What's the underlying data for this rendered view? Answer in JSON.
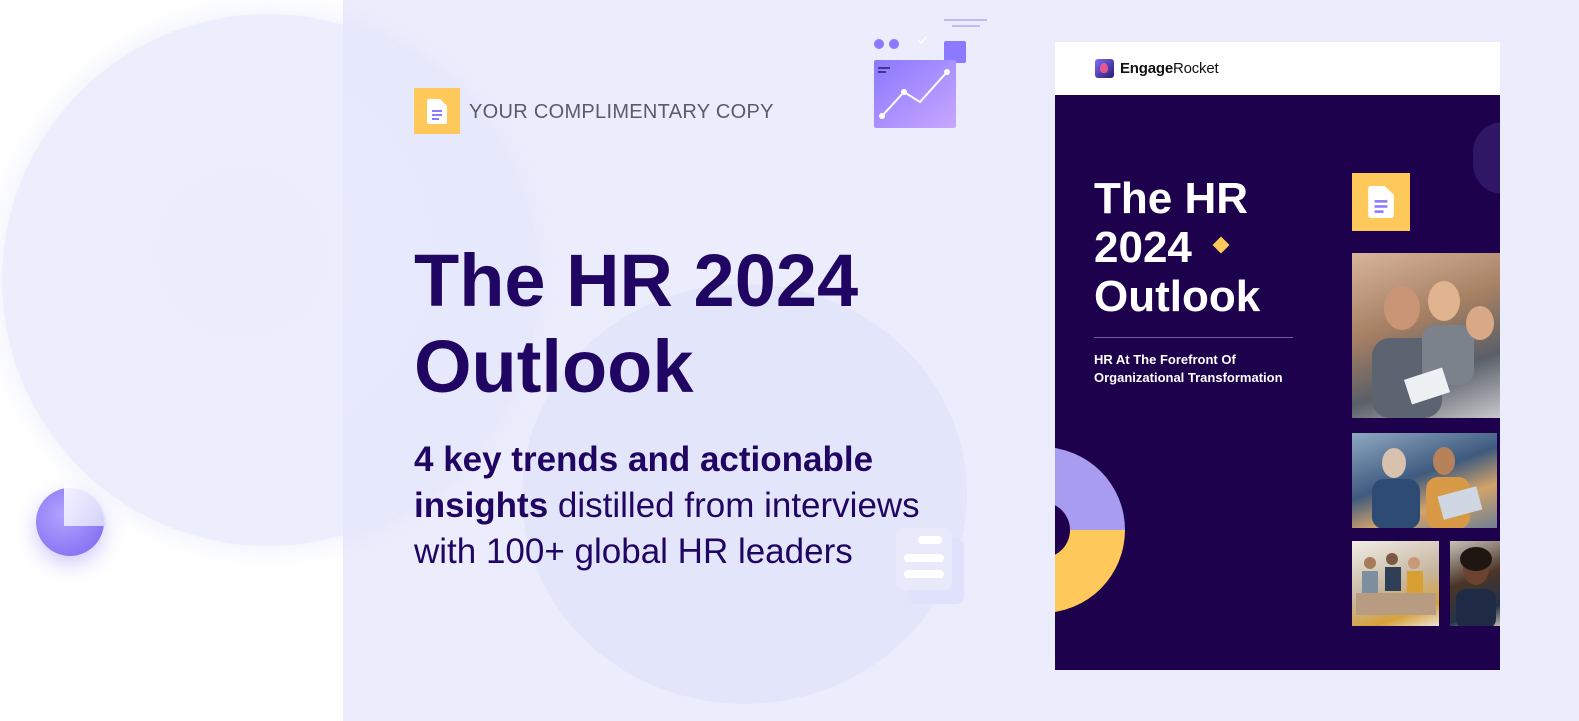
{
  "badge": {
    "label": "YOUR COMPLIMENTARY COPY",
    "icon": "document-icon",
    "color": "#ffc85a"
  },
  "hero": {
    "title_line1": "The HR 2024",
    "title_line2": "Outlook",
    "subtitle_bold": "4 key trends and actionable insights",
    "subtitle_rest": " distilled from interviews with 100+ global HR leaders"
  },
  "report": {
    "logo_bold": "Engage",
    "logo_rest": "Rocket",
    "title_line1": "The HR",
    "title_line2": "2024",
    "title_line3": "Outlook",
    "subtitle_line1": "HR At The Forefront Of",
    "subtitle_line2": "Organizational Transformation",
    "background_color": "#1e014d"
  },
  "colors": {
    "primary_text": "#200563",
    "accent_yellow": "#ffc85a",
    "accent_purple": "#8b79ff",
    "panel_background": "#ecedfc"
  }
}
